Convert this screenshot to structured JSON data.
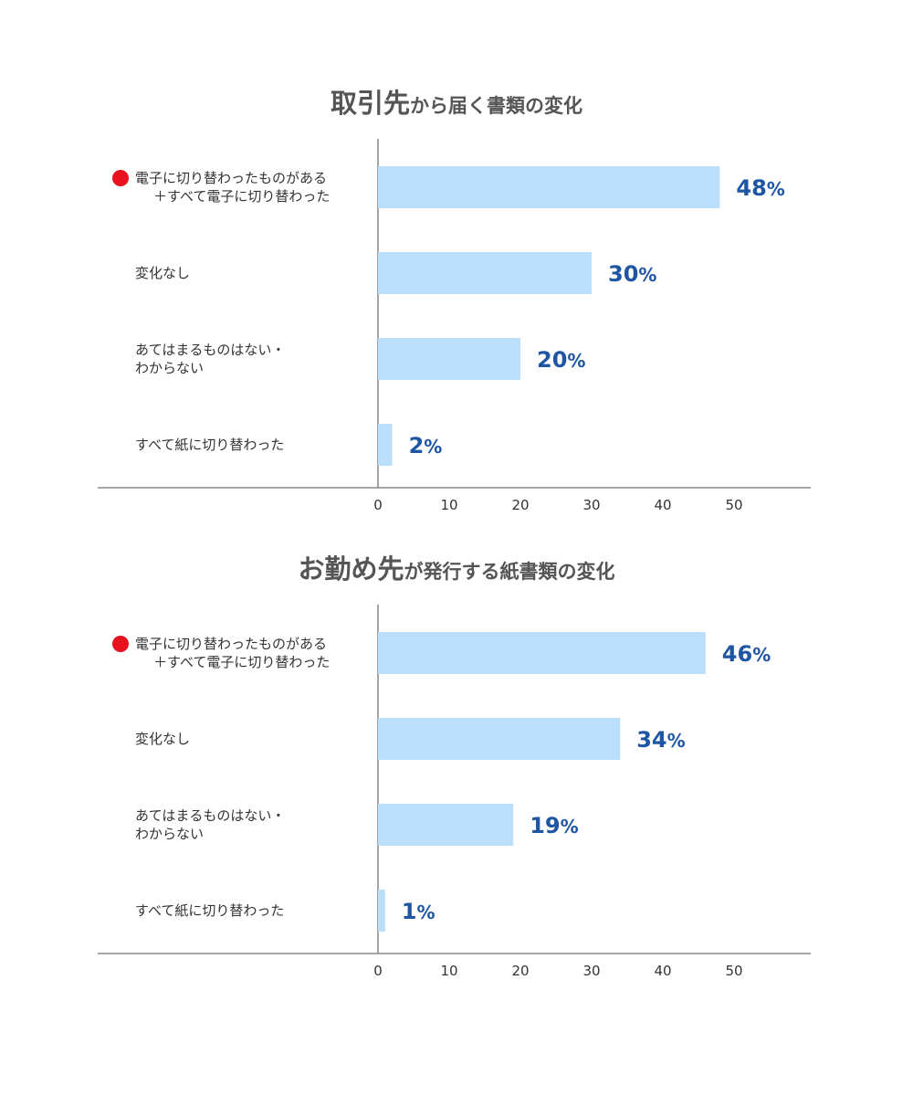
{
  "accent_bar_color": "#bbdefb",
  "value_color": "#1f56a3",
  "marker_color": "#e8121e",
  "charts": [
    {
      "title_big": "取引先",
      "title_small": "から届く書類の変化",
      "title_chart": "取引先から届く書類の変化"
    },
    {
      "title_big": "お勤め先",
      "title_small": "が発行する紙書類の変化",
      "title_chart": "お勤め先が発行する紙書類の変化"
    }
  ],
  "chart_data": [
    {
      "type": "bar",
      "orientation": "horizontal",
      "title": "取引先から届く書類の変化",
      "categories": [
        [
          "電子に切り替わったものがある",
          "＋すべて電子に切り替わった"
        ],
        [
          "変化なし"
        ],
        [
          "あてはまるものはない・",
          "わからない"
        ],
        [
          "すべて紙に切り替わった"
        ]
      ],
      "values": [
        48,
        30,
        20,
        2
      ],
      "value_labels": [
        "48",
        "30",
        "20",
        "2"
      ],
      "unit": "%",
      "highlight_category_index": 0,
      "xlim": [
        0,
        58
      ],
      "xticks": [
        0,
        10,
        20,
        30,
        40,
        50
      ],
      "grid": false
    },
    {
      "type": "bar",
      "orientation": "horizontal",
      "title": "お勤め先が発行する紙書類の変化",
      "categories": [
        [
          "電子に切り替わったものがある",
          "＋すべて電子に切り替わった"
        ],
        [
          "変化なし"
        ],
        [
          "あてはまるものはない・",
          "わからない"
        ],
        [
          "すべて紙に切り替わった"
        ]
      ],
      "values": [
        46,
        34,
        19,
        1
      ],
      "value_labels": [
        "46",
        "34",
        "19",
        "1"
      ],
      "unit": "%",
      "highlight_category_index": 0,
      "xlim": [
        0,
        58
      ],
      "xticks": [
        0,
        10,
        20,
        30,
        40,
        50
      ],
      "grid": false
    }
  ]
}
